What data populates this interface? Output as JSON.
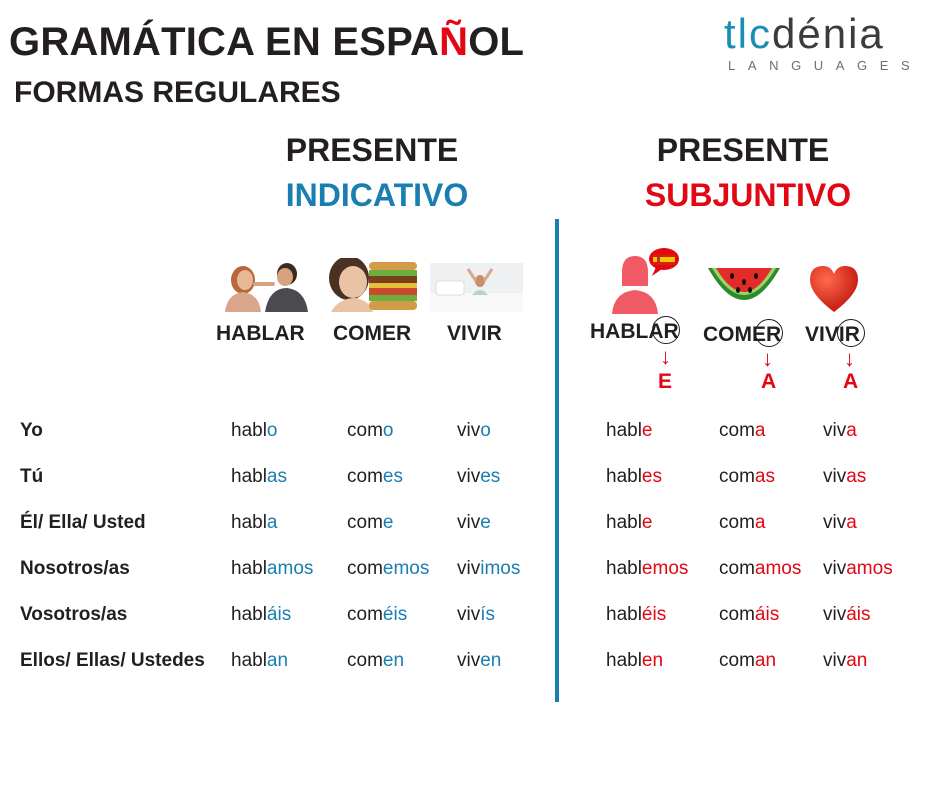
{
  "header": {
    "title_before": "GRAMÁTICA EN ESPA",
    "title_accent": "Ñ",
    "title_after": "OL",
    "subtitle": "FORMAS REGULARES"
  },
  "logo": {
    "brand_part1": "tlc",
    "brand_part2": "dénia",
    "tagline": "LANGUAGES"
  },
  "columns": {
    "indicativo": {
      "line1": "PRESENTE",
      "line2": "INDICATIVO"
    },
    "subjuntivo": {
      "line1": "PRESENTE",
      "line2": "SUBJUNTIVO"
    }
  },
  "verbs_indicativo": [
    "HABLAR",
    "COMER",
    "VIVIR"
  ],
  "verbs_subjuntivo": {
    "hablar": {
      "stem": "HABL",
      "ending": "AR",
      "new_vowel": "E"
    },
    "comer": {
      "stem": "COM",
      "ending": "ER",
      "new_vowel": "A"
    },
    "vivir": {
      "stem": "VIV",
      "ending": "IR",
      "new_vowel": "A"
    },
    "arrow": "↓"
  },
  "rows": [
    {
      "pronoun": "Yo",
      "ind": [
        [
          "habl",
          "o"
        ],
        [
          "com",
          "o"
        ],
        [
          "viv",
          "o"
        ]
      ],
      "sub": [
        [
          "habl",
          "e"
        ],
        [
          "com",
          "a"
        ],
        [
          "viv",
          "a"
        ]
      ]
    },
    {
      "pronoun": "Tú",
      "ind": [
        [
          "habl",
          "as"
        ],
        [
          "com",
          "es"
        ],
        [
          "viv",
          "es"
        ]
      ],
      "sub": [
        [
          "habl",
          "es"
        ],
        [
          "com",
          "as"
        ],
        [
          "viv",
          "as"
        ]
      ]
    },
    {
      "pronoun": "Él/ Ella/ Usted",
      "ind": [
        [
          "habl",
          "a"
        ],
        [
          "com",
          "e"
        ],
        [
          "viv",
          "e"
        ]
      ],
      "sub": [
        [
          "habl",
          "e"
        ],
        [
          "com",
          "a"
        ],
        [
          "viv",
          "a"
        ]
      ]
    },
    {
      "pronoun": "Nosotros/as",
      "ind": [
        [
          "habl",
          "amos"
        ],
        [
          "com",
          "emos"
        ],
        [
          "viv",
          "imos"
        ]
      ],
      "sub": [
        [
          "habl",
          "emos"
        ],
        [
          "com",
          "amos"
        ],
        [
          "viv",
          "amos"
        ]
      ]
    },
    {
      "pronoun": "Vosotros/as",
      "ind": [
        [
          "habl",
          "áis"
        ],
        [
          "com",
          "éis"
        ],
        [
          "viv",
          "ís"
        ]
      ],
      "sub": [
        [
          "habl",
          "éis"
        ],
        [
          "com",
          "áis"
        ],
        [
          "viv",
          "áis"
        ]
      ]
    },
    {
      "pronoun": "Ellos/ Ellas/ Ustedes",
      "ind": [
        [
          "habl",
          "an"
        ],
        [
          "com",
          "en"
        ],
        [
          "viv",
          "en"
        ]
      ],
      "sub": [
        [
          "habl",
          "en"
        ],
        [
          "com",
          "an"
        ],
        [
          "viv",
          "an"
        ]
      ]
    }
  ],
  "colors": {
    "indicativo_accent": "#1a7fb0",
    "subjuntivo_accent": "#e30613",
    "text": "#231f20"
  },
  "icons": {
    "ind_hablar": "couple-talking-photo",
    "ind_comer": "woman-eating-burger-photo",
    "ind_vivir": "woman-waking-up-photo",
    "sub_hablar": "person-speech-bubble-spain-flag-icon",
    "sub_comer": "watermelon-slice-icon",
    "sub_vivir": "heart-icon"
  }
}
